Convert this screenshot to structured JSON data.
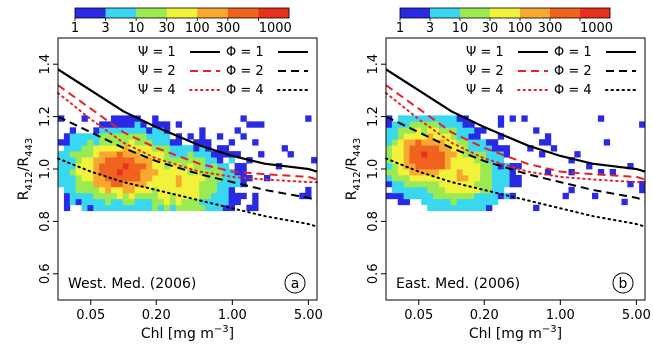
{
  "colorbar": {
    "labels": [
      "1",
      "3",
      "10",
      "30",
      "100",
      "300",
      "1000"
    ],
    "colors": [
      "#2a2ae6",
      "#3ad8f0",
      "#9bea52",
      "#f2f23a",
      "#f8a830",
      "#f0621e",
      "#e8321e"
    ]
  },
  "chart_data": [
    {
      "type": "heatmap",
      "panel_label": "a",
      "region": "West. Med. (2006)",
      "xlabel": "Chl [mg m",
      "xlabel_sup": "−3",
      "xlabel_end": "]",
      "ylabel": "R",
      "ylabel_sub1": "412",
      "ylabel_mid": "/R",
      "ylabel_sub2": "443",
      "xscale": "log",
      "xlim": [
        0.025,
        6.0
      ],
      "ylim": [
        0.5,
        1.5
      ],
      "xticks": [
        0.05,
        0.2,
        1.0,
        5.0
      ],
      "xtick_labels": [
        "0.05",
        "0.20",
        "1.00",
        "5.00"
      ],
      "yticks": [
        0.6,
        0.8,
        1.0,
        1.2,
        1.4
      ],
      "ytick_labels": [
        "0.6",
        "0.8",
        "1.0",
        "1.2",
        "1.4"
      ],
      "legend": [
        {
          "label": "Ψ = 1",
          "style": "solid",
          "color": "#000000",
          "key": "psi1"
        },
        {
          "label": "Ψ = 2",
          "style": "dashed",
          "color": "#e8202a",
          "key": "psi2"
        },
        {
          "label": "Ψ = 4",
          "style": "dotted",
          "color": "#e8202a",
          "key": "psi4"
        },
        {
          "label": "Φ = 1",
          "style": "solid",
          "color": "#000000",
          "key": "phi1"
        },
        {
          "label": "Φ = 2",
          "style": "dashed",
          "color": "#000000",
          "key": "phi2"
        },
        {
          "label": "Φ = 4",
          "style": "dotted",
          "color": "#000000",
          "key": "phi4"
        }
      ],
      "density_cores": [
        {
          "chl": 0.1,
          "ratio": 1.0,
          "level": 6
        },
        {
          "chl": 0.3,
          "ratio": 0.95,
          "level": 4
        }
      ]
    },
    {
      "type": "heatmap",
      "panel_label": "b",
      "region": "East. Med. (2006)",
      "xlabel": "Chl [mg m",
      "xlabel_sup": "−3",
      "xlabel_end": "]",
      "ylabel": "R",
      "ylabel_sub1": "412",
      "ylabel_mid": "/R",
      "ylabel_sub2": "443",
      "xscale": "log",
      "xlim": [
        0.025,
        6.0
      ],
      "ylim": [
        0.5,
        1.5
      ],
      "xticks": [
        0.05,
        0.2,
        1.0,
        5.0
      ],
      "xtick_labels": [
        "0.05",
        "0.20",
        "1.00",
        "5.00"
      ],
      "yticks": [
        0.6,
        0.8,
        1.0,
        1.2,
        1.4
      ],
      "ytick_labels": [
        "0.6",
        "0.8",
        "1.0",
        "1.2",
        "1.4"
      ],
      "legend": [
        {
          "label": "Ψ = 1",
          "style": "solid",
          "color": "#000000",
          "key": "psi1"
        },
        {
          "label": "Ψ = 2",
          "style": "dashed",
          "color": "#e8202a",
          "key": "psi2"
        },
        {
          "label": "Ψ = 4",
          "style": "dotted",
          "color": "#e8202a",
          "key": "psi4"
        },
        {
          "label": "Φ = 1",
          "style": "solid",
          "color": "#000000",
          "key": "phi1"
        },
        {
          "label": "Φ = 2",
          "style": "dashed",
          "color": "#000000",
          "key": "phi2"
        },
        {
          "label": "Φ = 4",
          "style": "dotted",
          "color": "#000000",
          "key": "phi4"
        }
      ],
      "density_cores": [
        {
          "chl": 0.06,
          "ratio": 1.05,
          "level": 6
        },
        {
          "chl": 0.12,
          "ratio": 0.98,
          "level": 4
        }
      ]
    }
  ],
  "curves": {
    "psi1": [
      [
        0.025,
        1.38
      ],
      [
        0.05,
        1.3
      ],
      [
        0.1,
        1.22
      ],
      [
        0.2,
        1.16
      ],
      [
        0.5,
        1.09
      ],
      [
        1.0,
        1.05
      ],
      [
        2.0,
        1.02
      ],
      [
        5.0,
        1.0
      ],
      [
        6.0,
        0.99
      ]
    ],
    "psi2": [
      [
        0.025,
        1.32
      ],
      [
        0.05,
        1.23
      ],
      [
        0.1,
        1.14
      ],
      [
        0.2,
        1.08
      ],
      [
        0.5,
        1.02
      ],
      [
        1.0,
        0.99
      ],
      [
        2.0,
        0.98
      ],
      [
        5.0,
        0.97
      ],
      [
        6.0,
        0.96
      ]
    ],
    "psi4": [
      [
        0.025,
        1.29
      ],
      [
        0.05,
        1.19
      ],
      [
        0.1,
        1.1
      ],
      [
        0.2,
        1.04
      ],
      [
        0.5,
        0.99
      ],
      [
        1.0,
        0.97
      ],
      [
        2.0,
        0.96
      ],
      [
        5.0,
        0.95
      ],
      [
        6.0,
        0.95
      ]
    ],
    "phi1": [
      [
        0.025,
        1.38
      ],
      [
        0.05,
        1.3
      ],
      [
        0.1,
        1.22
      ],
      [
        0.2,
        1.16
      ],
      [
        0.5,
        1.09
      ],
      [
        1.0,
        1.05
      ],
      [
        2.0,
        1.02
      ],
      [
        5.0,
        1.0
      ],
      [
        6.0,
        0.99
      ]
    ],
    "phi2": [
      [
        0.025,
        1.2
      ],
      [
        0.05,
        1.14
      ],
      [
        0.1,
        1.08
      ],
      [
        0.2,
        1.03
      ],
      [
        0.5,
        0.98
      ],
      [
        1.0,
        0.95
      ],
      [
        2.0,
        0.92
      ],
      [
        5.0,
        0.89
      ],
      [
        6.0,
        0.88
      ]
    ],
    "phi4": [
      [
        0.025,
        1.04
      ],
      [
        0.05,
        0.99
      ],
      [
        0.1,
        0.95
      ],
      [
        0.2,
        0.92
      ],
      [
        0.5,
        0.88
      ],
      [
        1.0,
        0.85
      ],
      [
        2.0,
        0.82
      ],
      [
        5.0,
        0.79
      ],
      [
        6.0,
        0.78
      ]
    ]
  }
}
